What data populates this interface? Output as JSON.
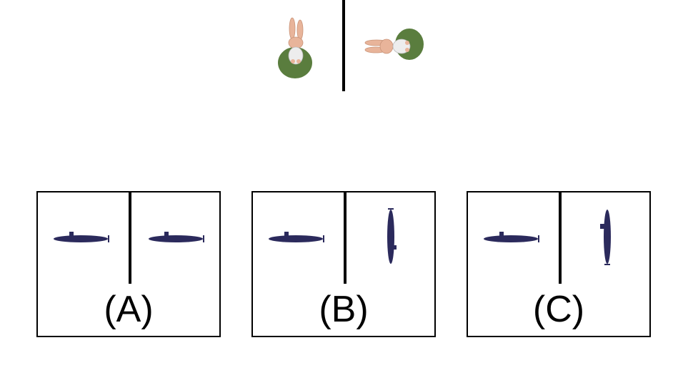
{
  "colors": {
    "submarine": "#2b2a5c",
    "mat": "#5a7d3e",
    "rabbit": "#e8b49a",
    "line": "#000000"
  },
  "icons": {
    "reference_left": "rabbit-on-mat-upright",
    "reference_right": "rabbit-on-mat-rotated",
    "option_object": "submarine-silhouette"
  },
  "options": [
    {
      "label": "(A)"
    },
    {
      "label": "(B)"
    },
    {
      "label": "(C)"
    }
  ]
}
